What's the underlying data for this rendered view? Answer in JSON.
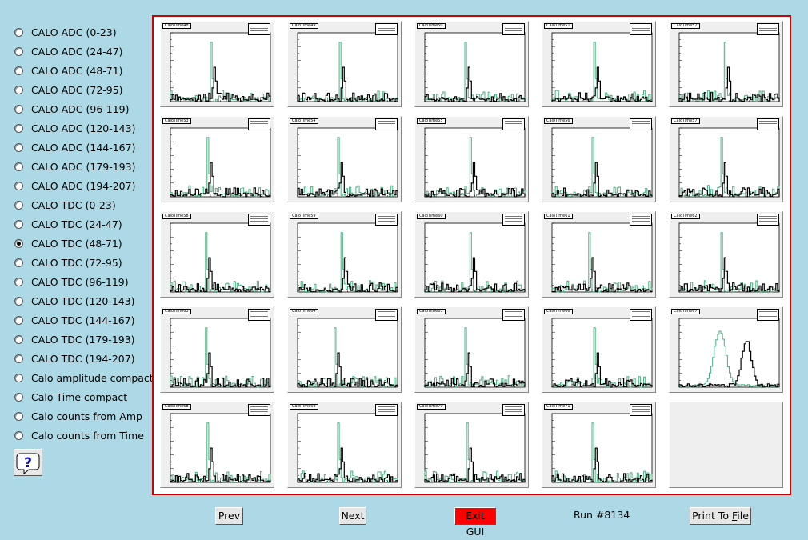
{
  "menu": {
    "items": [
      {
        "label": "CALO ADC (0-23)",
        "checked": false
      },
      {
        "label": "CALO ADC (24-47)",
        "checked": false
      },
      {
        "label": "CALO ADC (48-71)",
        "checked": false
      },
      {
        "label": "CALO ADC (72-95)",
        "checked": false
      },
      {
        "label": "CALO ADC (96-119)",
        "checked": false
      },
      {
        "label": "CALO ADC (120-143)",
        "checked": false
      },
      {
        "label": "CALO ADC (144-167)",
        "checked": false
      },
      {
        "label": "CALO ADC (179-193)",
        "checked": false
      },
      {
        "label": "CALO ADC (194-207)",
        "checked": false
      },
      {
        "label": "CALO TDC (0-23)",
        "checked": false
      },
      {
        "label": "CALO TDC (24-47)",
        "checked": false
      },
      {
        "label": "CALO TDC (48-71)",
        "checked": true
      },
      {
        "label": "CALO TDC (72-95)",
        "checked": false
      },
      {
        "label": "CALO TDC (96-119)",
        "checked": false
      },
      {
        "label": "CALO TDC (120-143)",
        "checked": false
      },
      {
        "label": "CALO TDC (144-167)",
        "checked": false
      },
      {
        "label": "CALO TDC (179-193)",
        "checked": false
      },
      {
        "label": "CALO TDC (194-207)",
        "checked": false
      },
      {
        "label": "Calo amplitude compact",
        "checked": false
      },
      {
        "label": "Calo Time compact",
        "checked": false
      },
      {
        "label": "Calo counts from Amp",
        "checked": false
      },
      {
        "label": "Calo counts from Time",
        "checked": false
      }
    ],
    "help_icon": "question-mark-icon"
  },
  "canvas": {
    "border_color": "#d00000",
    "series_colors": {
      "reference": "#4caf80",
      "current": "#000000"
    },
    "pads": [
      {
        "title": "CaloTime48",
        "peak": 0.4
      },
      {
        "title": "CaloTime49",
        "peak": 0.42
      },
      {
        "title": "CaloTime50",
        "peak": 0.4
      },
      {
        "title": "CaloTime51",
        "peak": 0.42
      },
      {
        "title": "CaloTime52",
        "peak": 0.45
      },
      {
        "title": "CaloTime53",
        "peak": 0.38
      },
      {
        "title": "CaloTime54",
        "peak": 0.4
      },
      {
        "title": "CaloTime55",
        "peak": 0.45
      },
      {
        "title": "CaloTime56",
        "peak": 0.4
      },
      {
        "title": "CaloTime57",
        "peak": 0.42
      },
      {
        "title": "CaloTime58",
        "peak": 0.36
      },
      {
        "title": "CaloTime59",
        "peak": 0.44
      },
      {
        "title": "CaloTime60",
        "peak": 0.45
      },
      {
        "title": "CaloTime61",
        "peak": 0.38
      },
      {
        "title": "CaloTime62",
        "peak": 0.42
      },
      {
        "title": "CaloTime63",
        "peak": 0.36
      },
      {
        "title": "CaloTime64",
        "peak": 0.38
      },
      {
        "title": "CaloTime65",
        "peak": 0.4
      },
      {
        "title": "CaloTime66",
        "peak": 0.42
      },
      {
        "title": "CaloTime67",
        "peak": 0.55
      },
      {
        "title": "CaloTime68",
        "peak": 0.38
      },
      {
        "title": "CaloTime69",
        "peak": 0.4
      },
      {
        "title": "CaloTime70",
        "peak": 0.42
      },
      {
        "title": "CaloTime71",
        "peak": 0.4
      }
    ]
  },
  "buttons": {
    "prev": "Prev",
    "next": "Next",
    "exit": "Exit GUI",
    "print_prefix": "Print To ",
    "print_accel": "F",
    "print_suffix": "ile"
  },
  "run_label": "Run #8134"
}
